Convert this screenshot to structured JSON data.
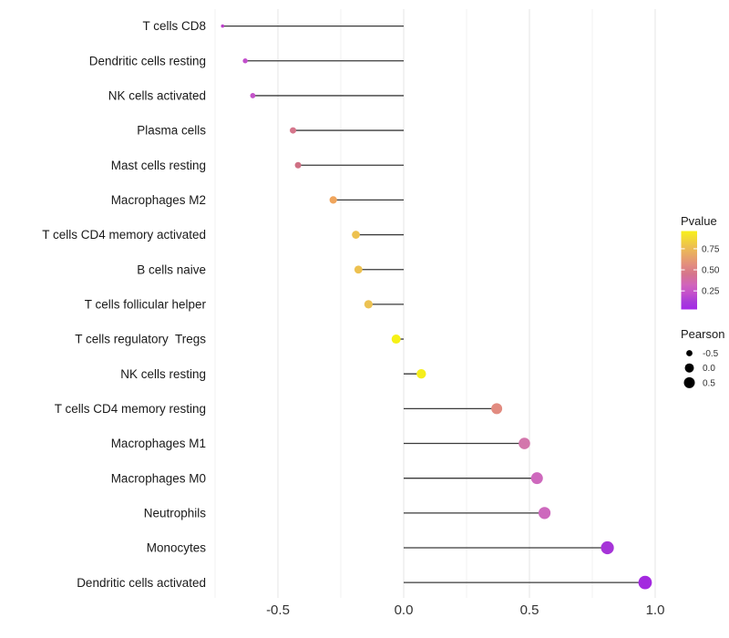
{
  "chart_data": {
    "type": "scatter",
    "subtype": "lollipop",
    "title": "",
    "xlabel": "",
    "ylabel": "",
    "grid": "on",
    "legend_position": "right",
    "xlim": [
      -0.8,
      1.05
    ],
    "x_ticks": {
      "values": [
        -0.5,
        0.0,
        0.5,
        1.0
      ],
      "labels": [
        "-0.5",
        "0.0",
        "0.5",
        "1.0"
      ]
    },
    "x_minor_ticks": [
      -0.75,
      -0.25,
      0.25,
      0.75
    ],
    "points": [
      {
        "label": "T cells CD8",
        "pearson": -0.72,
        "pvalue": 0.18,
        "color": "#BC3FC9",
        "radius": 1.8
      },
      {
        "label": "Dendritic cells resting",
        "pearson": -0.63,
        "pvalue": 0.22,
        "color": "#C24FCC",
        "radius": 2.7
      },
      {
        "label": "NK cells activated",
        "pearson": -0.6,
        "pvalue": 0.22,
        "color": "#C453C9",
        "radius": 2.9
      },
      {
        "label": "Plasma cells",
        "pearson": -0.44,
        "pvalue": 0.45,
        "color": "#D5758B",
        "radius": 3.5
      },
      {
        "label": "Mast cells resting",
        "pearson": -0.42,
        "pvalue": 0.45,
        "color": "#CF7084",
        "radius": 3.5
      },
      {
        "label": "Macrophages M2",
        "pearson": -0.28,
        "pvalue": 0.68,
        "color": "#F0A55C",
        "radius": 4.1
      },
      {
        "label": "T cells CD4 memory activated",
        "pearson": -0.19,
        "pvalue": 0.78,
        "color": "#EDC14F",
        "radius": 4.4
      },
      {
        "label": "B cells naive",
        "pearson": -0.18,
        "pvalue": 0.78,
        "color": "#EDC150",
        "radius": 4.4
      },
      {
        "label": "T cells follicular helper",
        "pearson": -0.14,
        "pvalue": 0.77,
        "color": "#ECC253",
        "radius": 4.6
      },
      {
        "label": "T cells regulatory  Tregs",
        "pearson": -0.03,
        "pvalue": 0.95,
        "color": "#F6F115",
        "radius": 5.0
      },
      {
        "label": "NK cells resting",
        "pearson": 0.07,
        "pvalue": 0.93,
        "color": "#F5EE1C",
        "radius": 5.2
      },
      {
        "label": "T cells CD4 memory resting",
        "pearson": 0.37,
        "pvalue": 0.55,
        "color": "#E28B80",
        "radius": 6.0
      },
      {
        "label": "Macrophages M1",
        "pearson": 0.48,
        "pvalue": 0.4,
        "color": "#D376AC",
        "radius": 6.3
      },
      {
        "label": "Macrophages M0",
        "pearson": 0.53,
        "pvalue": 0.33,
        "color": "#CE69BD",
        "radius": 6.5
      },
      {
        "label": "Neutrophils",
        "pearson": 0.56,
        "pvalue": 0.33,
        "color": "#CD69BD",
        "radius": 6.6
      },
      {
        "label": "Monocytes",
        "pearson": 0.81,
        "pvalue": 0.12,
        "color": "#A634D8",
        "radius": 7.1
      },
      {
        "label": "Dendritic cells activated",
        "pearson": 0.96,
        "pvalue": 0.05,
        "color": "#A329DF",
        "radius": 7.4
      }
    ],
    "legends": {
      "pvalue": {
        "title": "Pvalue",
        "tick_labels": [
          "0.75",
          "0.50",
          "0.25"
        ],
        "tick_values": [
          0.75,
          0.5,
          0.25
        ],
        "bar_range": [
          0.03,
          0.96
        ],
        "gradient_stops": [
          {
            "pos": 0.0,
            "color": "#F8F01B"
          },
          {
            "pos": 0.194,
            "color": "#EDC14F"
          },
          {
            "pos": 0.44,
            "color": "#E28B80"
          },
          {
            "pos": 0.548,
            "color": "#D5758B"
          },
          {
            "pos": 0.688,
            "color": "#D164BC"
          },
          {
            "pos": 0.796,
            "color": "#C350CB"
          },
          {
            "pos": 0.903,
            "color": "#A83BD9"
          },
          {
            "pos": 1.0,
            "color": "#A428E8"
          }
        ]
      },
      "pearson": {
        "title": "Pearson",
        "dot_color": "#000000",
        "entries": [
          {
            "label": "-0.5",
            "value": -0.5,
            "radius": 3.4
          },
          {
            "label": "0.0",
            "value": 0.0,
            "radius": 5.0
          },
          {
            "label": "0.5",
            "value": 0.5,
            "radius": 6.0
          }
        ]
      }
    },
    "colors": {
      "segment": "#3A3A3A",
      "grid_major": "#E5E5E5",
      "grid_minor": "#F2F2F2",
      "axis_text_y": "#1A1A1A",
      "axis_text_x": "#333333",
      "legend_title": "#1A1A1A",
      "legend_text": "#333333",
      "background": "#FFFFFF"
    }
  }
}
